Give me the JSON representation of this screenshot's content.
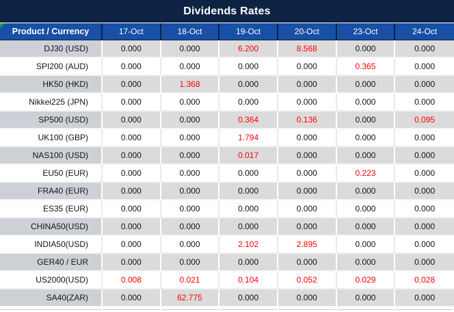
{
  "title": "Dividends Rates",
  "header": {
    "product_label": "Product / Currency",
    "dates": [
      "17-Oct",
      "18-Oct",
      "19-Oct",
      "20-Oct",
      "23-Oct",
      "24-Oct"
    ]
  },
  "rows": [
    {
      "product": "DJ30 (USD)",
      "values": [
        "0.000",
        "0.000",
        "6.200",
        "8.568",
        "0.000",
        "0.000"
      ],
      "red": [
        false,
        false,
        true,
        true,
        false,
        false
      ]
    },
    {
      "product": "SPI200 (AUD)",
      "values": [
        "0.000",
        "0.000",
        "0.000",
        "0.000",
        "0.365",
        "0.000"
      ],
      "red": [
        false,
        false,
        false,
        false,
        true,
        false
      ]
    },
    {
      "product": "HK50 (HKD)",
      "values": [
        "0.000",
        "1.368",
        "0.000",
        "0.000",
        "0.000",
        "0.000"
      ],
      "red": [
        false,
        true,
        false,
        false,
        false,
        false
      ]
    },
    {
      "product": "Nikkei225 (JPN)",
      "values": [
        "0.000",
        "0.000",
        "0.000",
        "0.000",
        "0.000",
        "0.000"
      ],
      "red": [
        false,
        false,
        false,
        false,
        false,
        false
      ]
    },
    {
      "product": "SP500 (USD)",
      "values": [
        "0.000",
        "0.000",
        "0.364",
        "0.136",
        "0.000",
        "0.095"
      ],
      "red": [
        false,
        false,
        true,
        true,
        false,
        true
      ]
    },
    {
      "product": "UK100 (GBP)",
      "values": [
        "0.000",
        "0.000",
        "1.794",
        "0.000",
        "0.000",
        "0.000"
      ],
      "red": [
        false,
        false,
        true,
        false,
        false,
        false
      ]
    },
    {
      "product": "NAS100 (USD)",
      "values": [
        "0.000",
        "0.000",
        "0.017",
        "0.000",
        "0.000",
        "0.000"
      ],
      "red": [
        false,
        false,
        true,
        false,
        false,
        false
      ]
    },
    {
      "product": "EU50 (EUR)",
      "values": [
        "0.000",
        "0.000",
        "0.000",
        "0.000",
        "0.223",
        "0.000"
      ],
      "red": [
        false,
        false,
        false,
        false,
        true,
        false
      ]
    },
    {
      "product": "FRA40 (EUR)",
      "values": [
        "0.000",
        "0.000",
        "0.000",
        "0.000",
        "0.000",
        "0.000"
      ],
      "red": [
        false,
        false,
        false,
        false,
        false,
        false
      ]
    },
    {
      "product": "ES35 (EUR)",
      "values": [
        "0.000",
        "0.000",
        "0.000",
        "0.000",
        "0.000",
        "0.000"
      ],
      "red": [
        false,
        false,
        false,
        false,
        false,
        false
      ]
    },
    {
      "product": "CHINA50(USD)",
      "values": [
        "0.000",
        "0.000",
        "0.000",
        "0.000",
        "0.000",
        "0.000"
      ],
      "red": [
        false,
        false,
        false,
        false,
        false,
        false
      ]
    },
    {
      "product": "INDIA50(USD)",
      "values": [
        "0.000",
        "0.000",
        "2.102",
        "2.895",
        "0.000",
        "0.000"
      ],
      "red": [
        false,
        false,
        true,
        true,
        false,
        false
      ]
    },
    {
      "product": "GER40 / EUR",
      "values": [
        "0.000",
        "0.000",
        "0.000",
        "0.000",
        "0.000",
        "0.000"
      ],
      "red": [
        false,
        false,
        false,
        false,
        false,
        false
      ]
    },
    {
      "product": "US2000(USD)",
      "values": [
        "0.008",
        "0.021",
        "0.104",
        "0.052",
        "0.029",
        "0.028"
      ],
      "red": [
        true,
        true,
        true,
        true,
        true,
        true
      ]
    },
    {
      "product": "SA40(ZAR)",
      "values": [
        "0.000",
        "62.775",
        "0.000",
        "0.000",
        "0.000",
        "0.000"
      ],
      "red": [
        false,
        true,
        false,
        false,
        false,
        false
      ]
    }
  ],
  "colors": {
    "title_bg": "#0E2344",
    "header_bg": "#1750A4",
    "row_gray_product": "#CDD1D6",
    "row_gray_value": "#DBDBDB",
    "red_text": "#FF0000",
    "error_triangle_green": "#21A038"
  }
}
